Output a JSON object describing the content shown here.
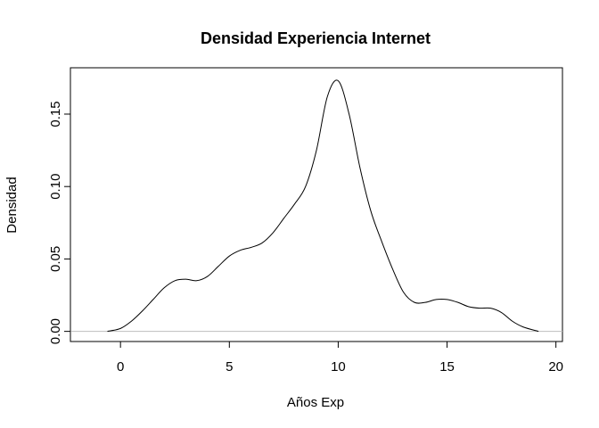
{
  "chart_data": {
    "type": "line",
    "title": "Densidad Experiencia Internet",
    "xlabel": "Años Exp",
    "ylabel": "Densidad",
    "xlim": [
      -2.3,
      20.3
    ],
    "ylim": [
      -0.007,
      0.182
    ],
    "x_ticks": [
      0,
      5,
      10,
      15,
      20
    ],
    "x_tick_labels": [
      "0",
      "5",
      "10",
      "15",
      "20"
    ],
    "y_ticks": [
      0.0,
      0.05,
      0.1,
      0.15
    ],
    "y_tick_labels": [
      "0.00",
      "0.05",
      "0.10",
      "0.15"
    ],
    "baseline": 0,
    "grid": false,
    "series": [
      {
        "x": [
          -0.6,
          0.0,
          0.5,
          1.0,
          1.5,
          2.0,
          2.5,
          3.0,
          3.5,
          4.0,
          4.5,
          5.0,
          5.5,
          6.0,
          6.5,
          7.0,
          7.5,
          8.0,
          8.5,
          9.0,
          9.5,
          10.0,
          10.5,
          11.0,
          11.5,
          12.0,
          12.5,
          13.0,
          13.5,
          14.0,
          14.5,
          15.0,
          15.5,
          16.0,
          16.5,
          17.0,
          17.5,
          18.0,
          18.5,
          19.2
        ],
        "y": [
          0.0,
          0.002,
          0.007,
          0.014,
          0.022,
          0.03,
          0.035,
          0.036,
          0.035,
          0.038,
          0.045,
          0.052,
          0.056,
          0.058,
          0.061,
          0.068,
          0.078,
          0.088,
          0.1,
          0.125,
          0.162,
          0.173,
          0.15,
          0.113,
          0.083,
          0.062,
          0.043,
          0.027,
          0.02,
          0.02,
          0.022,
          0.022,
          0.02,
          0.017,
          0.016,
          0.016,
          0.013,
          0.007,
          0.003,
          0.0
        ]
      }
    ]
  }
}
